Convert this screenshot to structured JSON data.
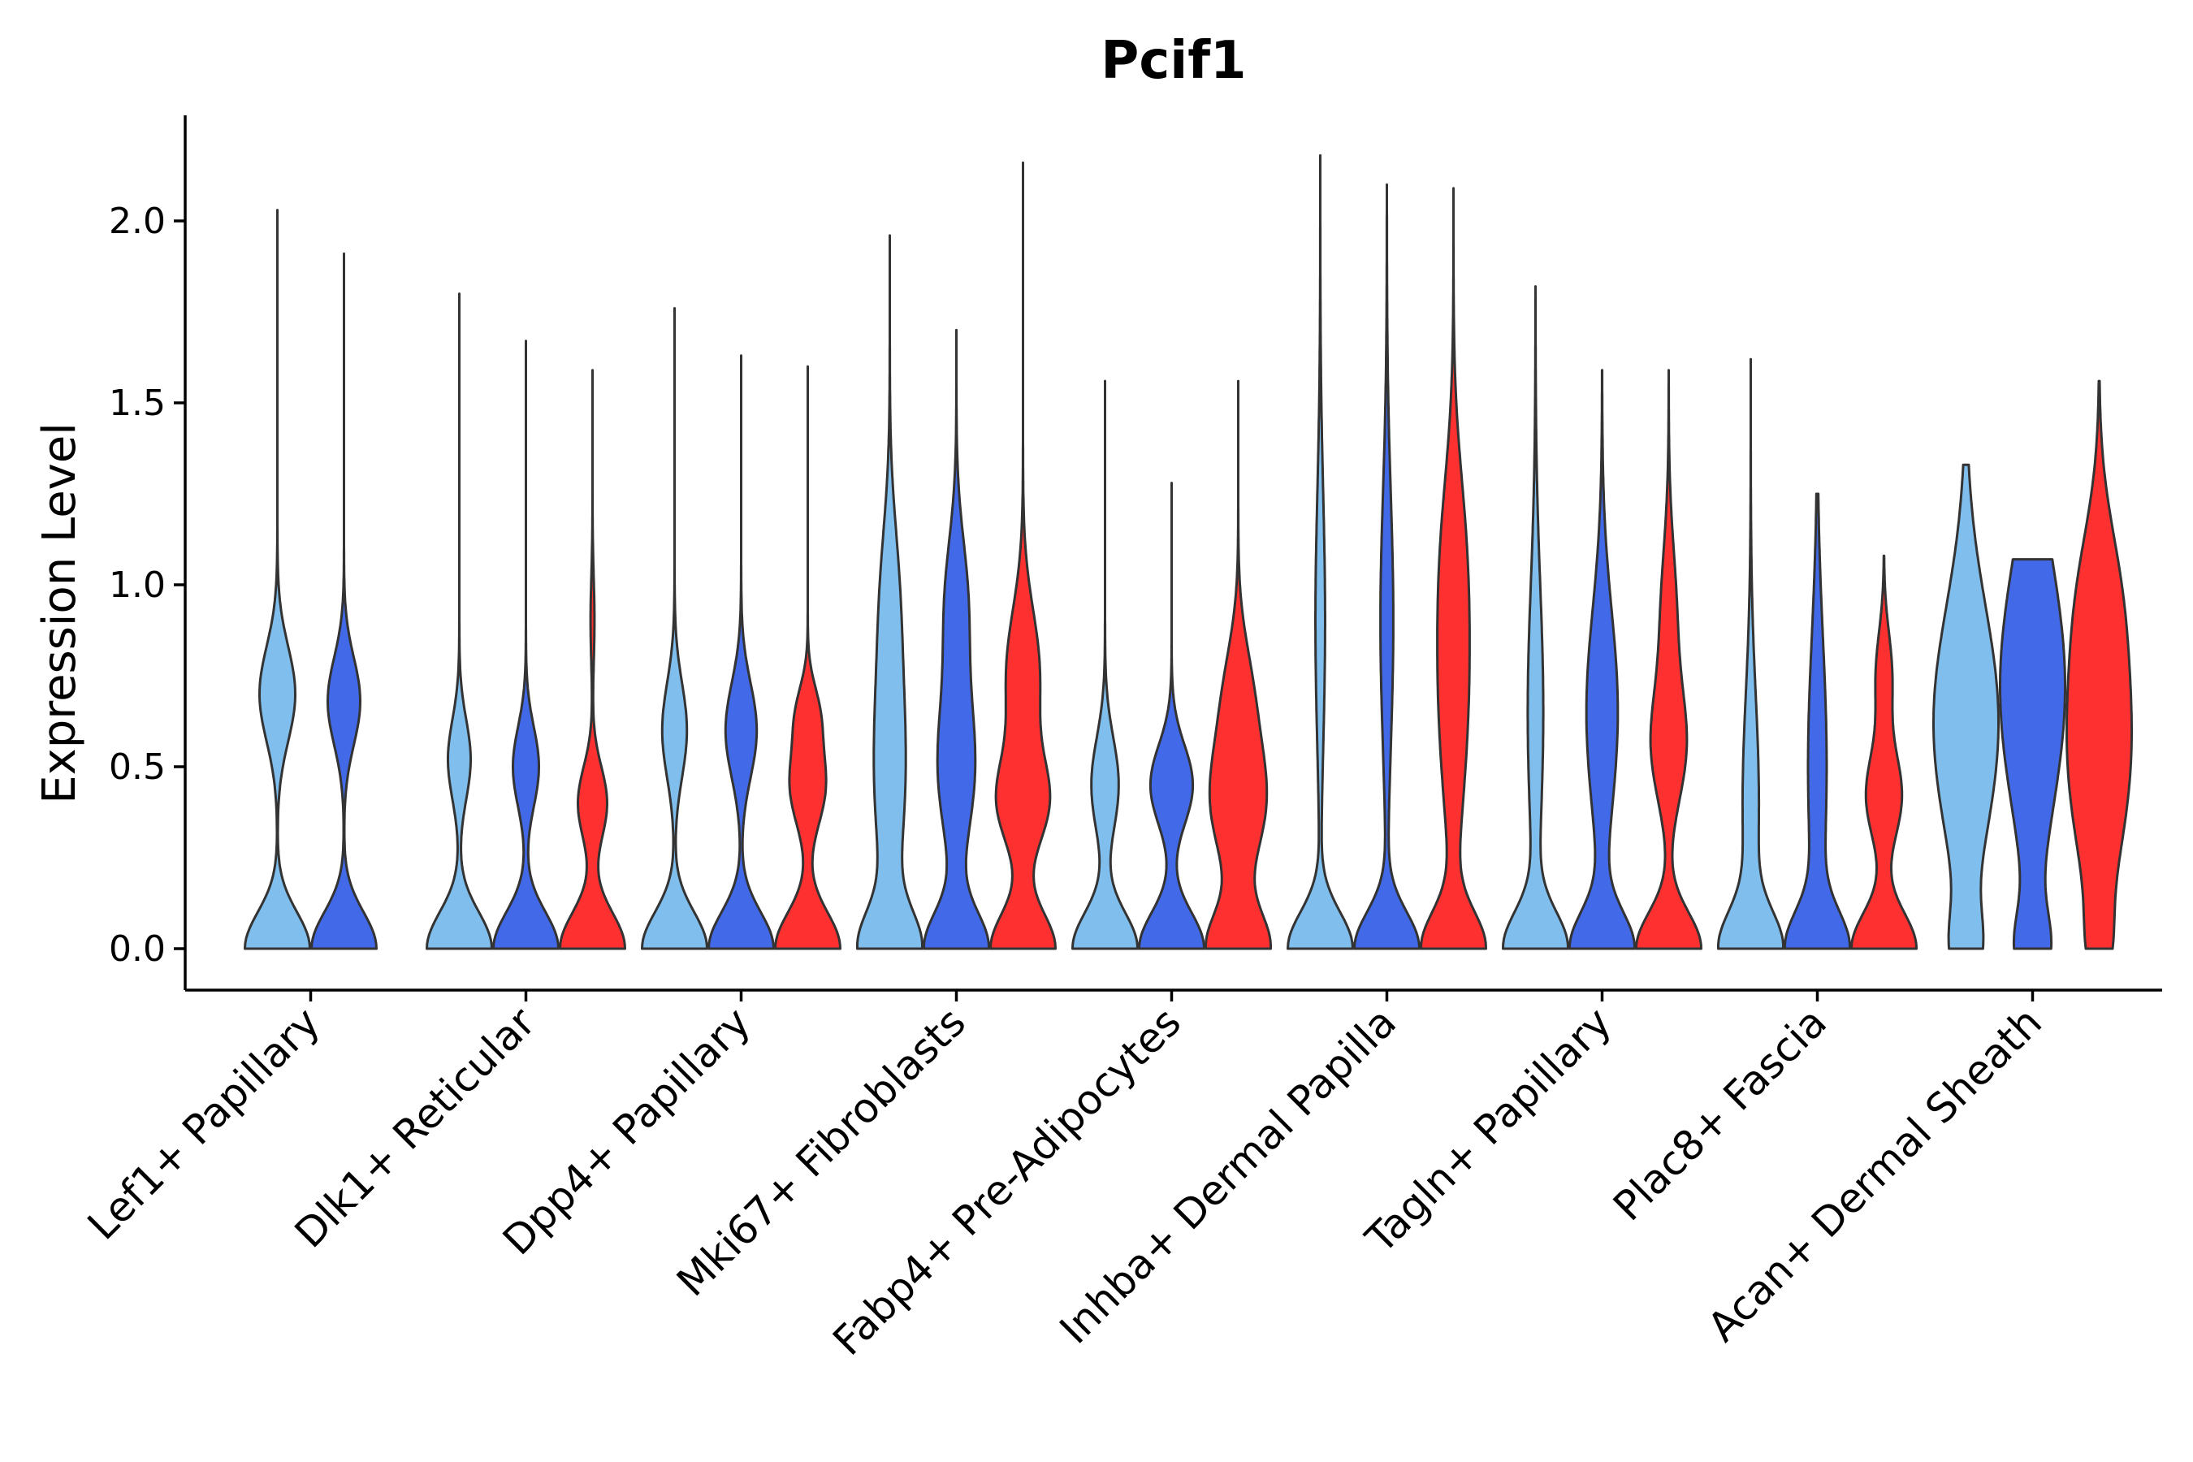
{
  "chart_data": {
    "type": "violin",
    "title": "Pcif1",
    "xlabel": "",
    "ylabel": "Expression Level",
    "ylim": [
      -0.11,
      2.29
    ],
    "yticks": [
      0.0,
      0.5,
      1.0,
      1.5,
      2.0
    ],
    "ytick_labels": [
      "0.0",
      "0.5",
      "1.0",
      "1.5",
      "2.0"
    ],
    "grid": false,
    "legend": "none",
    "series_colors": [
      "#80BFED",
      "#4169E8",
      "#FF3030"
    ],
    "categories": [
      {
        "label": "Lef1+ Papillary",
        "violins": [
          {
            "max": 2.03,
            "bumps": [
              [
                0.7,
                0.55,
                0.13
              ]
            ],
            "bottom": 1.0
          },
          {
            "max": 1.91,
            "bumps": [
              [
                0.68,
                0.5,
                0.12
              ]
            ],
            "bottom": 1.0
          }
        ]
      },
      {
        "label": "Dlk1+ Reticular",
        "violins": [
          {
            "max": 1.8,
            "bumps": [
              [
                0.52,
                0.35,
                0.11
              ]
            ],
            "bottom": 1.0
          },
          {
            "max": 1.67,
            "bumps": [
              [
                0.5,
                0.4,
                0.11
              ]
            ],
            "bottom": 1.0
          },
          {
            "max": 1.59,
            "bumps": [
              [
                0.4,
                0.45,
                0.1
              ],
              [
                0.9,
                0.06,
                0.12
              ]
            ],
            "bottom": 1.0
          }
        ]
      },
      {
        "label": "Dpp4+ Papillary",
        "violins": [
          {
            "max": 1.76,
            "bumps": [
              [
                0.6,
                0.38,
                0.13
              ]
            ],
            "bottom": 1.0
          },
          {
            "max": 1.63,
            "bumps": [
              [
                0.6,
                0.48,
                0.13
              ]
            ],
            "bottom": 1.0
          },
          {
            "max": 1.6,
            "bumps": [
              [
                0.45,
                0.55,
                0.11
              ],
              [
                0.65,
                0.3,
                0.08
              ]
            ],
            "bottom": 1.0
          }
        ]
      },
      {
        "label": "Mki67+ Fibroblasts",
        "violins": [
          {
            "max": 1.96,
            "bumps": [
              [
                0.5,
                0.55,
                0.3
              ],
              [
                1.0,
                0.22,
                0.2
              ]
            ],
            "bottom": 1.0
          },
          {
            "max": 1.7,
            "bumps": [
              [
                0.5,
                0.58,
                0.2
              ],
              [
                0.95,
                0.35,
                0.18
              ]
            ],
            "bottom": 1.0
          },
          {
            "max": 2.16,
            "bumps": [
              [
                0.4,
                0.75,
                0.12
              ],
              [
                0.75,
                0.52,
                0.18
              ]
            ],
            "bottom": 1.0
          }
        ]
      },
      {
        "label": "Fabp4+ Pre-Adipocytes",
        "violins": [
          {
            "max": 1.56,
            "bumps": [
              [
                0.45,
                0.4,
                0.13
              ]
            ],
            "bottom": 0.95
          },
          {
            "max": 1.28,
            "bumps": [
              [
                0.45,
                0.62,
                0.11
              ]
            ],
            "bottom": 0.95
          },
          {
            "max": 1.56,
            "bumps": [
              [
                0.4,
                0.85,
                0.16
              ],
              [
                0.7,
                0.4,
                0.15
              ]
            ],
            "bottom": 1.0
          }
        ]
      },
      {
        "label": "Inhba+ Dermal Papilla",
        "violins": [
          {
            "max": 2.18,
            "bumps": [
              [
                0.9,
                0.15,
                0.35
              ]
            ],
            "bottom": 1.0
          },
          {
            "max": 2.1,
            "bumps": [
              [
                0.9,
                0.2,
                0.35
              ]
            ],
            "bottom": 1.0
          },
          {
            "max": 2.09,
            "bumps": [
              [
                0.65,
                0.42,
                0.3
              ],
              [
                1.1,
                0.3,
                0.25
              ]
            ],
            "bottom": 1.0
          }
        ]
      },
      {
        "label": "Tagln+ Papillary",
        "violins": [
          {
            "max": 1.82,
            "bumps": [
              [
                0.65,
                0.25,
                0.35
              ]
            ],
            "bottom": 1.0
          },
          {
            "max": 1.59,
            "bumps": [
              [
                0.65,
                0.5,
                0.28
              ]
            ],
            "bottom": 1.0
          },
          {
            "max": 1.59,
            "bumps": [
              [
                0.55,
                0.5,
                0.15
              ],
              [
                0.9,
                0.25,
                0.2
              ]
            ],
            "bottom": 1.0
          }
        ]
      },
      {
        "label": "Plac8+ Fascia",
        "violins": [
          {
            "max": 1.62,
            "bumps": [
              [
                0.4,
                0.28,
                0.3
              ]
            ],
            "bottom": 1.0
          },
          {
            "max": 1.25,
            "bumps": [
              [
                0.5,
                0.32,
                0.35
              ]
            ],
            "bottom": 1.0
          },
          {
            "max": 1.08,
            "bumps": [
              [
                0.42,
                0.55,
                0.12
              ],
              [
                0.75,
                0.25,
                0.12
              ]
            ],
            "bottom": 1.0
          }
        ]
      },
      {
        "label": "Acan+ Dermal Sheath",
        "violins": [
          {
            "max": 1.33,
            "bumps": [
              [
                0.62,
                0.95,
                0.32
              ]
            ],
            "bottom": 0.35
          },
          {
            "max": 1.07,
            "bumps": [
              [
                0.72,
                1.0,
                0.35
              ]
            ],
            "bottom": 0.45
          },
          {
            "max": 1.56,
            "bumps": [
              [
                0.55,
                1.0,
                0.32
              ],
              [
                1.0,
                0.35,
                0.2
              ]
            ],
            "bottom": 0.2
          }
        ]
      }
    ]
  }
}
